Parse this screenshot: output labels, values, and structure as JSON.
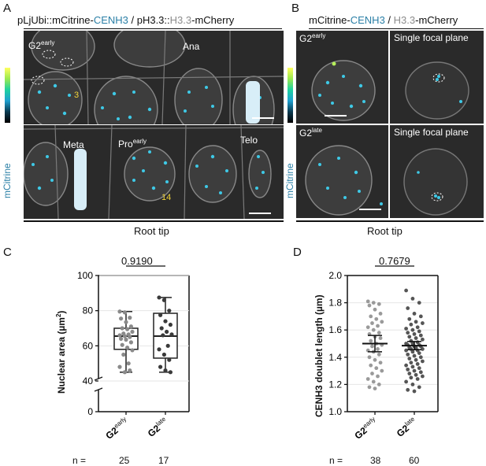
{
  "panels": {
    "A": {
      "letter": "A",
      "title_parts": [
        "pLjUbi::mCitrine-",
        "CENH3",
        " / pH3.3::",
        "H3.3",
        "-mCherry"
      ],
      "colorbar_label": "mCitrine",
      "top_labels": {
        "g2": "G2",
        "g2_sup": "early",
        "ana": "Ana",
        "count": "3"
      },
      "bottom_labels": {
        "meta": "Meta",
        "pro": "Pro",
        "pro_sup": "early",
        "telo": "Telo",
        "count": "14"
      },
      "footer": "Root tip"
    },
    "B": {
      "letter": "B",
      "title_parts": [
        "mCitrine-",
        "CENH3",
        " / ",
        "H3.3",
        "-mCherry"
      ],
      "colorbar_label": "mCitrine",
      "tl": {
        "text": "G2",
        "sup": "early"
      },
      "tr": "Single focal plane",
      "bl": {
        "text": "G2",
        "sup": "late"
      },
      "br": "Single focal plane",
      "footer": "Root tip"
    },
    "C": {
      "letter": "C",
      "p_value": "0.9190",
      "n_label": "n =",
      "n_values": [
        "25",
        "17"
      ]
    },
    "D": {
      "letter": "D",
      "p_value": "0.7679",
      "n_label": "n =",
      "n_values": [
        "38",
        "60"
      ]
    }
  },
  "chart_data": [
    {
      "type": "box",
      "panel": "C",
      "ylabel": "Nuclear area (µm²)",
      "categories": [
        "G2early",
        "G2late"
      ],
      "category_parts": [
        [
          "G2",
          "early"
        ],
        [
          "G2",
          "late"
        ]
      ],
      "ylim": [
        0,
        100
      ],
      "axis_break": [
        0,
        40
      ],
      "yticks": [
        0,
        40,
        60,
        80,
        100
      ],
      "box_stats": [
        {
          "min": 45,
          "q1": 58,
          "median": 65.5,
          "q3": 70,
          "max": 79.5
        },
        {
          "min": 45,
          "q1": 53,
          "median": 65.5,
          "q3": 78.5,
          "max": 87.5
        }
      ],
      "points": [
        [
          79.5,
          79,
          76,
          75.5,
          73.5,
          71,
          70,
          69.5,
          68,
          67,
          66.5,
          66,
          65.5,
          65,
          64,
          63.5,
          62,
          60.5,
          59,
          57.5,
          55,
          50,
          48,
          45,
          46
        ],
        [
          87.5,
          86,
          80,
          77.5,
          74,
          72,
          70,
          68,
          66.5,
          66,
          60,
          58,
          55,
          52,
          48,
          46,
          45
        ]
      ],
      "colors": [
        "#8a8a8a",
        "#3a3a3a"
      ]
    },
    {
      "type": "scatter",
      "panel": "D",
      "ylabel": "CENH3 doublet length (µm)",
      "categories": [
        "G2early",
        "G2late"
      ],
      "category_parts": [
        [
          "G2",
          "early"
        ],
        [
          "G2",
          "late"
        ]
      ],
      "ylim": [
        1.0,
        2.0
      ],
      "yticks": [
        1.0,
        1.2,
        1.4,
        1.6,
        1.8,
        2.0
      ],
      "means": [
        1.5,
        1.485
      ],
      "error_low": [
        1.44,
        1.455
      ],
      "error_high": [
        1.56,
        1.515
      ],
      "points": [
        [
          1.81,
          1.8,
          1.79,
          1.78,
          1.75,
          1.72,
          1.7,
          1.68,
          1.66,
          1.65,
          1.63,
          1.62,
          1.6,
          1.58,
          1.57,
          1.55,
          1.54,
          1.52,
          1.5,
          1.49,
          1.48,
          1.46,
          1.45,
          1.44,
          1.42,
          1.4,
          1.38,
          1.36,
          1.34,
          1.32,
          1.3,
          1.28,
          1.26,
          1.24,
          1.22,
          1.2,
          1.18,
          1.17
        ],
        [
          1.89,
          1.83,
          1.8,
          1.76,
          1.72,
          1.7,
          1.68,
          1.66,
          1.65,
          1.64,
          1.62,
          1.61,
          1.6,
          1.59,
          1.58,
          1.57,
          1.56,
          1.55,
          1.54,
          1.53,
          1.52,
          1.51,
          1.5,
          1.5,
          1.49,
          1.49,
          1.48,
          1.48,
          1.47,
          1.47,
          1.46,
          1.46,
          1.45,
          1.45,
          1.44,
          1.43,
          1.42,
          1.41,
          1.4,
          1.39,
          1.38,
          1.37,
          1.36,
          1.35,
          1.34,
          1.33,
          1.32,
          1.31,
          1.3,
          1.29,
          1.28,
          1.27,
          1.26,
          1.25,
          1.24,
          1.22,
          1.2,
          1.18,
          1.16,
          1.15
        ]
      ],
      "colors": [
        "#9a9a9a",
        "#555555"
      ]
    }
  ]
}
